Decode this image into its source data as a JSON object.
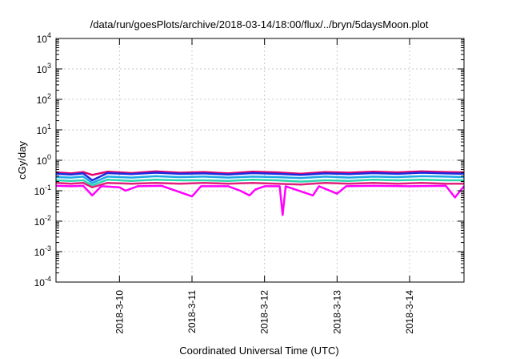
{
  "chart_data": {
    "type": "line",
    "title": "/data/run/goesPlots/archive/2018-03-14/18:00/flux/../bryn/5daysMoon.plot",
    "xlabel": "Coordinated Universal Time (UTC)",
    "ylabel": "cGy/day",
    "yscale": "log",
    "ylim": [
      0.0001,
      10000
    ],
    "xlim": [
      "2018-03-09 03:00",
      "2018-03-14 18:00"
    ],
    "y_ticks": [
      {
        "value": 0.0001,
        "mantissa": "10",
        "exp": "-4"
      },
      {
        "value": 0.001,
        "mantissa": "10",
        "exp": "-3"
      },
      {
        "value": 0.01,
        "mantissa": "10",
        "exp": "-2"
      },
      {
        "value": 0.1,
        "mantissa": "10",
        "exp": "-1"
      },
      {
        "value": 1,
        "mantissa": "10",
        "exp": "0"
      },
      {
        "value": 10,
        "mantissa": "10",
        "exp": "1"
      },
      {
        "value": 100,
        "mantissa": "10",
        "exp": "2"
      },
      {
        "value": 1000,
        "mantissa": "10",
        "exp": "3"
      },
      {
        "value": 10000,
        "mantissa": "10",
        "exp": "4"
      }
    ],
    "x_ticks": [
      {
        "value": "2018-03-10 00:00",
        "label": "2018-3-10"
      },
      {
        "value": "2018-03-11 00:00",
        "label": "2018-3-11"
      },
      {
        "value": "2018-03-12 00:00",
        "label": "2018-3-12"
      },
      {
        "value": "2018-03-13 00:00",
        "label": "2018-3-13"
      },
      {
        "value": "2018-03-14 00:00",
        "label": "2018-3-14"
      }
    ],
    "grid": true,
    "legend": "none",
    "series": [
      {
        "color": "#e6006e",
        "values": [
          [
            "2018-03-09 03:00",
            0.4
          ],
          [
            "2018-03-09 08:00",
            0.37
          ],
          [
            "2018-03-09 12:00",
            0.41
          ],
          [
            "2018-03-09 15:00",
            0.33
          ],
          [
            "2018-03-09 20:00",
            0.42
          ],
          [
            "2018-03-10 04:00",
            0.38
          ],
          [
            "2018-03-10 12:00",
            0.43
          ],
          [
            "2018-03-10 20:00",
            0.39
          ],
          [
            "2018-03-11 04:00",
            0.41
          ],
          [
            "2018-03-11 12:00",
            0.37
          ],
          [
            "2018-03-11 20:00",
            0.42
          ],
          [
            "2018-03-12 04:00",
            0.4
          ],
          [
            "2018-03-12 12:00",
            0.36
          ],
          [
            "2018-03-12 20:00",
            0.41
          ],
          [
            "2018-03-13 04:00",
            0.39
          ],
          [
            "2018-03-13 12:00",
            0.42
          ],
          [
            "2018-03-13 20:00",
            0.4
          ],
          [
            "2018-03-14 04:00",
            0.43
          ],
          [
            "2018-03-14 12:00",
            0.41
          ],
          [
            "2018-03-14 18:00",
            0.4
          ]
        ]
      },
      {
        "color": "#1a2ce0",
        "values": [
          [
            "2018-03-09 03:00",
            0.36
          ],
          [
            "2018-03-09 08:00",
            0.34
          ],
          [
            "2018-03-09 12:00",
            0.37
          ],
          [
            "2018-03-09 15:00",
            0.22
          ],
          [
            "2018-03-09 20:00",
            0.38
          ],
          [
            "2018-03-10 04:00",
            0.35
          ],
          [
            "2018-03-10 12:00",
            0.39
          ],
          [
            "2018-03-10 20:00",
            0.36
          ],
          [
            "2018-03-11 04:00",
            0.37
          ],
          [
            "2018-03-11 12:00",
            0.34
          ],
          [
            "2018-03-11 20:00",
            0.38
          ],
          [
            "2018-03-12 04:00",
            0.36
          ],
          [
            "2018-03-12 12:00",
            0.33
          ],
          [
            "2018-03-12 20:00",
            0.37
          ],
          [
            "2018-03-13 04:00",
            0.35
          ],
          [
            "2018-03-13 12:00",
            0.38
          ],
          [
            "2018-03-13 20:00",
            0.36
          ],
          [
            "2018-03-14 04:00",
            0.39
          ],
          [
            "2018-03-14 12:00",
            0.37
          ],
          [
            "2018-03-14 18:00",
            0.36
          ]
        ]
      },
      {
        "color": "#1fa8e8",
        "values": [
          [
            "2018-03-09 03:00",
            0.28
          ],
          [
            "2018-03-09 08:00",
            0.27
          ],
          [
            "2018-03-09 12:00",
            0.29
          ],
          [
            "2018-03-09 15:00",
            0.18
          ],
          [
            "2018-03-09 20:00",
            0.29
          ],
          [
            "2018-03-10 04:00",
            0.27
          ],
          [
            "2018-03-10 12:00",
            0.3
          ],
          [
            "2018-03-10 20:00",
            0.28
          ],
          [
            "2018-03-11 04:00",
            0.29
          ],
          [
            "2018-03-11 12:00",
            0.27
          ],
          [
            "2018-03-11 20:00",
            0.29
          ],
          [
            "2018-03-12 04:00",
            0.28
          ],
          [
            "2018-03-12 12:00",
            0.26
          ],
          [
            "2018-03-12 20:00",
            0.29
          ],
          [
            "2018-03-13 04:00",
            0.27
          ],
          [
            "2018-03-13 12:00",
            0.29
          ],
          [
            "2018-03-13 20:00",
            0.28
          ],
          [
            "2018-03-14 04:00",
            0.3
          ],
          [
            "2018-03-14 12:00",
            0.29
          ],
          [
            "2018-03-14 18:00",
            0.28
          ]
        ]
      },
      {
        "color": "#2ed6b0",
        "values": [
          [
            "2018-03-09 03:00",
            0.22
          ],
          [
            "2018-03-09 08:00",
            0.21
          ],
          [
            "2018-03-09 12:00",
            0.22
          ],
          [
            "2018-03-09 15:00",
            0.15
          ],
          [
            "2018-03-09 20:00",
            0.23
          ],
          [
            "2018-03-10 04:00",
            0.21
          ],
          [
            "2018-03-10 12:00",
            0.23
          ],
          [
            "2018-03-10 20:00",
            0.22
          ],
          [
            "2018-03-11 04:00",
            0.22
          ],
          [
            "2018-03-11 12:00",
            0.21
          ],
          [
            "2018-03-11 20:00",
            0.23
          ],
          [
            "2018-03-12 04:00",
            0.22
          ],
          [
            "2018-03-12 12:00",
            0.2
          ],
          [
            "2018-03-12 20:00",
            0.22
          ],
          [
            "2018-03-13 04:00",
            0.21
          ],
          [
            "2018-03-13 12:00",
            0.23
          ],
          [
            "2018-03-13 20:00",
            0.22
          ],
          [
            "2018-03-14 04:00",
            0.23
          ],
          [
            "2018-03-14 12:00",
            0.22
          ],
          [
            "2018-03-14 18:00",
            0.22
          ]
        ]
      },
      {
        "color": "#e0207a",
        "values": [
          [
            "2018-03-09 03:00",
            0.18
          ],
          [
            "2018-03-09 08:00",
            0.17
          ],
          [
            "2018-03-09 12:00",
            0.18
          ],
          [
            "2018-03-09 15:00",
            0.13
          ],
          [
            "2018-03-09 20:00",
            0.18
          ],
          [
            "2018-03-10 04:00",
            0.17
          ],
          [
            "2018-03-10 12:00",
            0.18
          ],
          [
            "2018-03-10 20:00",
            0.17
          ],
          [
            "2018-03-11 04:00",
            0.18
          ],
          [
            "2018-03-11 12:00",
            0.17
          ],
          [
            "2018-03-11 20:00",
            0.18
          ],
          [
            "2018-03-12 04:00",
            0.17
          ],
          [
            "2018-03-12 12:00",
            0.16
          ],
          [
            "2018-03-12 20:00",
            0.18
          ],
          [
            "2018-03-13 04:00",
            0.17
          ],
          [
            "2018-03-13 12:00",
            0.18
          ],
          [
            "2018-03-13 20:00",
            0.17
          ],
          [
            "2018-03-14 04:00",
            0.18
          ],
          [
            "2018-03-14 12:00",
            0.17
          ],
          [
            "2018-03-14 18:00",
            0.17
          ]
        ]
      },
      {
        "color": "#ff00ff",
        "values": [
          [
            "2018-03-09 03:00",
            0.145
          ],
          [
            "2018-03-09 08:00",
            0.14
          ],
          [
            "2018-03-09 12:00",
            0.145
          ],
          [
            "2018-03-09 15:00",
            0.07
          ],
          [
            "2018-03-09 18:00",
            0.14
          ],
          [
            "2018-03-10 00:00",
            0.13
          ],
          [
            "2018-03-10 02:00",
            0.1
          ],
          [
            "2018-03-10 06:00",
            0.14
          ],
          [
            "2018-03-10 14:00",
            0.145
          ],
          [
            "2018-03-11 00:00",
            0.065
          ],
          [
            "2018-03-11 03:00",
            0.14
          ],
          [
            "2018-03-11 12:00",
            0.14
          ],
          [
            "2018-03-11 16:00",
            0.1
          ],
          [
            "2018-03-11 19:00",
            0.07
          ],
          [
            "2018-03-11 21:00",
            0.11
          ],
          [
            "2018-03-12 00:00",
            0.14
          ],
          [
            "2018-03-12 05:00",
            0.14
          ],
          [
            "2018-03-12 06:00",
            0.016
          ],
          [
            "2018-03-12 07:00",
            0.14
          ],
          [
            "2018-03-12 16:00",
            0.07
          ],
          [
            "2018-03-12 18:00",
            0.14
          ],
          [
            "2018-03-13 00:00",
            0.08
          ],
          [
            "2018-03-13 03:00",
            0.14
          ],
          [
            "2018-03-13 12:00",
            0.145
          ],
          [
            "2018-03-14 00:00",
            0.14
          ],
          [
            "2018-03-14 12:00",
            0.145
          ],
          [
            "2018-03-14 15:00",
            0.06
          ],
          [
            "2018-03-14 18:00",
            0.14
          ]
        ]
      }
    ]
  }
}
